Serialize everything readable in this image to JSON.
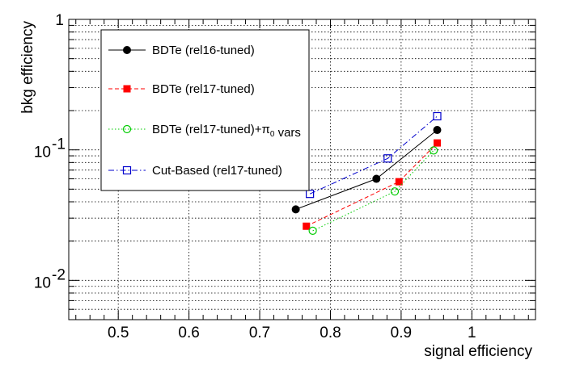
{
  "chart_data": {
    "type": "line",
    "xlabel": "signal efficiency",
    "ylabel": "bkg efficiency",
    "xlim": [
      0.43,
      1.09
    ],
    "ylim": [
      0.005,
      1
    ],
    "yscale": "log",
    "grid": true,
    "x_ticks": [
      0.5,
      0.6,
      0.7,
      0.8,
      0.9,
      1
    ],
    "x_tick_labels": [
      "0.5",
      "0.6",
      "0.7",
      "0.8",
      "0.9",
      "1"
    ],
    "y_tick_labels": [
      {
        "value": 1,
        "base": "1",
        "exp": ""
      },
      {
        "value": 0.1,
        "base": "10",
        "exp": "-1"
      },
      {
        "value": 0.01,
        "base": "10",
        "exp": "-2"
      }
    ],
    "legend_position": "top-left",
    "series": [
      {
        "name_parts": [
          {
            "text": "BDTe (rel16-tuned)",
            "sub": ""
          }
        ],
        "color": "#000000",
        "marker": "filled-circle",
        "dash": "solid",
        "x": [
          0.751,
          0.865,
          0.951
        ],
        "y": [
          0.035,
          0.06,
          0.142
        ]
      },
      {
        "name_parts": [
          {
            "text": "BDTe (rel17-tuned)",
            "sub": ""
          }
        ],
        "color": "#ff0000",
        "marker": "filled-square",
        "dash": "dashed",
        "x": [
          0.766,
          0.897,
          0.951
        ],
        "y": [
          0.026,
          0.057,
          0.113
        ]
      },
      {
        "name_parts": [
          {
            "text": "BDTe (rel17-tuned)+π",
            "sub": "0"
          },
          {
            "text": " vars",
            "sub": ""
          }
        ],
        "color": "#00cc00",
        "marker": "open-circle",
        "dash": "dotted",
        "x": [
          0.775,
          0.891,
          0.946
        ],
        "y": [
          0.024,
          0.048,
          0.099
        ]
      },
      {
        "name_parts": [
          {
            "text": "Cut-Based (rel17-tuned)",
            "sub": ""
          }
        ],
        "color": "#0000cc",
        "marker": "open-square",
        "dash": "dashdot",
        "x": [
          0.771,
          0.881,
          0.951
        ],
        "y": [
          0.046,
          0.086,
          0.181
        ]
      }
    ]
  }
}
